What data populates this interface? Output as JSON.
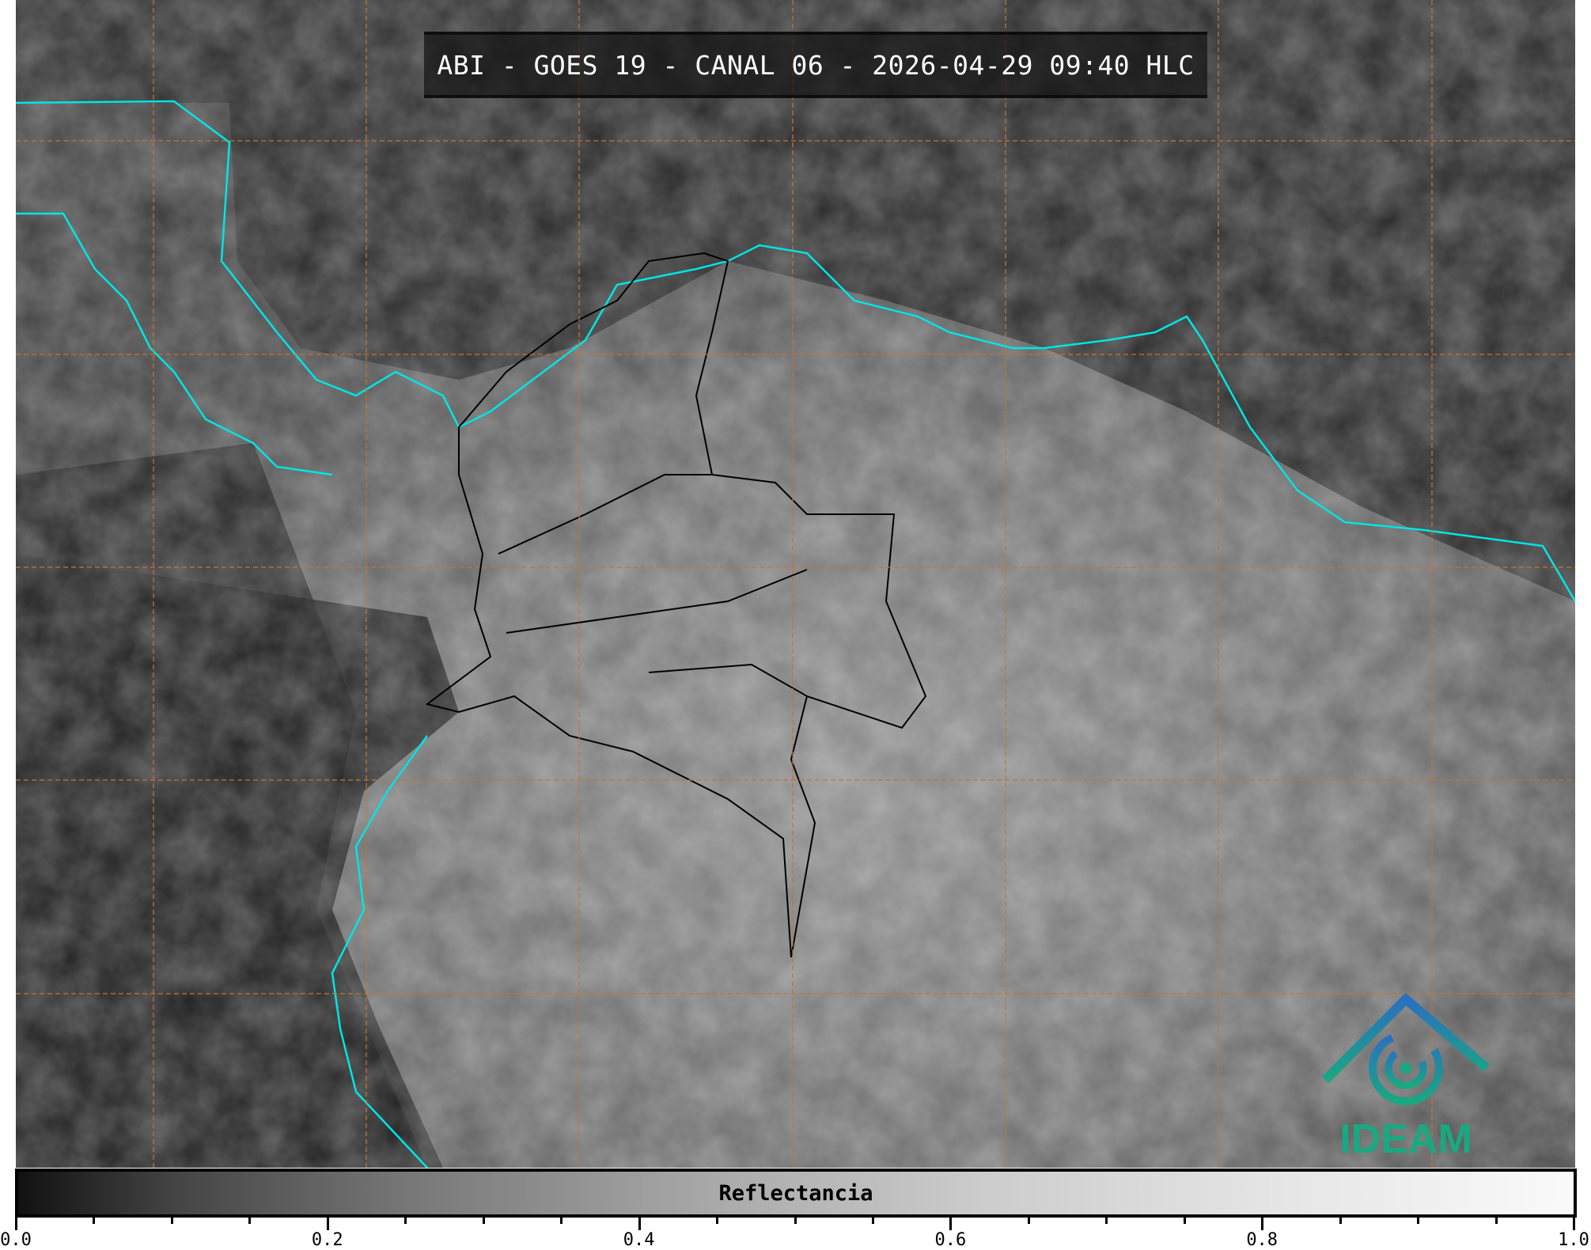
{
  "title": "ABI - GOES 19 - CANAL 06 - 2026-04-29 09:40 HLC",
  "colorbar": {
    "label": "Reflectancia",
    "range": [
      0.0,
      1.0
    ],
    "colormap": "greyscale",
    "tick_labels": [
      "0.0",
      "0.2",
      "0.4",
      "0.6",
      "0.8",
      "1.0"
    ]
  },
  "colors": {
    "coastline": "#00e5e5",
    "gridlines": "#c8742a",
    "borders": "#000000",
    "logo": "#1aa880"
  },
  "logo": {
    "text": "IDEAM"
  }
}
